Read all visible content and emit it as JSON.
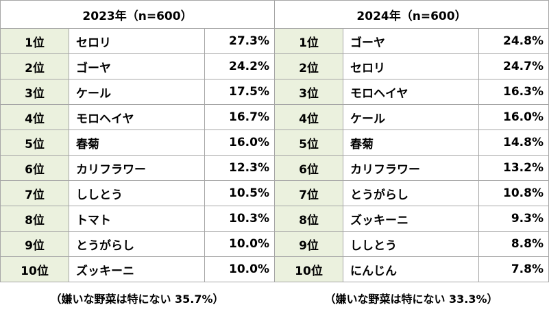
{
  "chart_data": {
    "type": "table",
    "tables": [
      {
        "title": "2023年（n=600）",
        "rows": [
          {
            "rank": "1位",
            "item": "セロリ",
            "value": "27.3%"
          },
          {
            "rank": "2位",
            "item": "ゴーヤ",
            "value": "24.2%"
          },
          {
            "rank": "3位",
            "item": "ケール",
            "value": "17.5%"
          },
          {
            "rank": "4位",
            "item": "モロヘイヤ",
            "value": "16.7%"
          },
          {
            "rank": "5位",
            "item": "春菊",
            "value": "16.0%"
          },
          {
            "rank": "6位",
            "item": "カリフラワー",
            "value": "12.3%"
          },
          {
            "rank": "7位",
            "item": "ししとう",
            "value": "10.5%"
          },
          {
            "rank": "8位",
            "item": "トマト",
            "value": "10.3%"
          },
          {
            "rank": "9位",
            "item": "とうがらし",
            "value": "10.0%"
          },
          {
            "rank": "10位",
            "item": "ズッキーニ",
            "value": "10.0%"
          }
        ],
        "note": "（嫌いな野菜は特にない 35.7%）"
      },
      {
        "title": "2024年（n=600）",
        "rows": [
          {
            "rank": "1位",
            "item": "ゴーヤ",
            "value": "24.8%"
          },
          {
            "rank": "2位",
            "item": "セロリ",
            "value": "24.7%"
          },
          {
            "rank": "3位",
            "item": "モロヘイヤ",
            "value": "16.3%"
          },
          {
            "rank": "4位",
            "item": "ケール",
            "value": "16.0%"
          },
          {
            "rank": "5位",
            "item": "春菊",
            "value": "14.8%"
          },
          {
            "rank": "6位",
            "item": "カリフラワー",
            "value": "13.2%"
          },
          {
            "rank": "7位",
            "item": "とうがらし",
            "value": "10.8%"
          },
          {
            "rank": "8位",
            "item": "ズッキーニ",
            "value": "9.3%"
          },
          {
            "rank": "9位",
            "item": "ししとう",
            "value": "8.8%"
          },
          {
            "rank": "10位",
            "item": "にんじん",
            "value": "7.8%"
          }
        ],
        "note": "（嫌いな野菜は特にない 33.3%）"
      }
    ]
  },
  "colors": {
    "rank_column_bg": "#ebf1de",
    "border": "#a6a6a6"
  }
}
